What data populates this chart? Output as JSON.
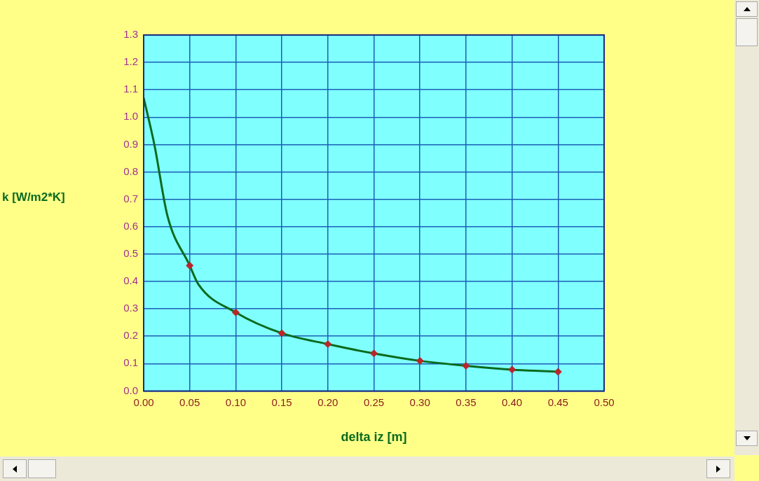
{
  "chart_data": {
    "type": "line",
    "xlabel": "delta iz [m]",
    "ylabel": "k [W/m2*K]",
    "xlim": [
      0,
      0.5
    ],
    "xticks": [
      {
        "value": 0,
        "label": "0.00"
      },
      {
        "value": 0.05,
        "label": "0.05"
      },
      {
        "value": 0.1,
        "label": "0.10"
      },
      {
        "value": 0.15,
        "label": "0.15"
      },
      {
        "value": 0.2,
        "label": "0.20"
      },
      {
        "value": 0.25,
        "label": "0.25"
      },
      {
        "value": 0.3,
        "label": "0.30"
      },
      {
        "value": 0.35,
        "label": "0.35"
      },
      {
        "value": 0.4,
        "label": "0.40"
      },
      {
        "value": 0.45,
        "label": "0.45"
      },
      {
        "value": 0.5,
        "label": "0.50"
      }
    ],
    "ylim": [
      0,
      1.3
    ],
    "yticks": [
      {
        "value": 0,
        "label": "0.0"
      },
      {
        "value": 0.1,
        "label": "0.1"
      },
      {
        "value": 0.2,
        "label": "0.2"
      },
      {
        "value": 0.3,
        "label": "0.3"
      },
      {
        "value": 0.4,
        "label": "0.4"
      },
      {
        "value": 0.5,
        "label": "0.5"
      },
      {
        "value": 0.6,
        "label": "0.6"
      },
      {
        "value": 0.7,
        "label": "0.7"
      },
      {
        "value": 0.8,
        "label": "0.8"
      },
      {
        "value": 0.9,
        "label": "0.9"
      },
      {
        "value": 1.0,
        "label": "1.0"
      },
      {
        "value": 1.1,
        "label": "1.1"
      },
      {
        "value": 1.2,
        "label": "1.2"
      },
      {
        "value": 1.3,
        "label": "1.3"
      }
    ],
    "grid": true,
    "legend": false,
    "series": [
      {
        "color": "#0a6b1e",
        "marker": "none",
        "x": [
          0,
          0.0116,
          0.0258,
          0.05,
          0.0593,
          0.1,
          0.15,
          0.2,
          0.25,
          0.3,
          0.35,
          0.4,
          0.45
        ],
        "values": [
          1.07,
          0.9,
          0.64,
          0.458,
          0.39,
          0.287,
          0.211,
          0.171,
          0.137,
          0.11,
          0.092,
          0.078,
          0.07
        ]
      },
      {
        "type": "scatter",
        "color": "#b8262a",
        "marker": "diamond",
        "x": [
          0.05,
          0.1,
          0.15,
          0.2,
          0.25,
          0.3,
          0.35,
          0.4,
          0.45
        ],
        "values": [
          0.458,
          0.287,
          0.211,
          0.171,
          0.137,
          0.11,
          0.092,
          0.078,
          0.07
        ]
      }
    ]
  }
}
